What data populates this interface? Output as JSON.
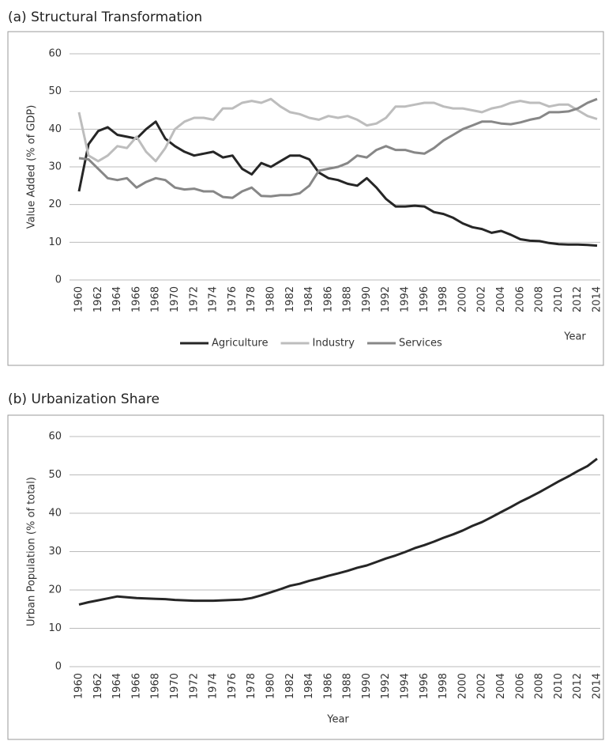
{
  "chart_data": [
    {
      "type": "line",
      "title": "(a) Structural Transformation",
      "ylabel": "Value Added (% of GDP)",
      "xlabel": "Year",
      "x": [
        1960,
        1961,
        1962,
        1963,
        1964,
        1965,
        1966,
        1967,
        1968,
        1969,
        1970,
        1971,
        1972,
        1973,
        1974,
        1975,
        1976,
        1977,
        1978,
        1979,
        1980,
        1981,
        1982,
        1983,
        1984,
        1985,
        1986,
        1987,
        1988,
        1989,
        1990,
        1991,
        1992,
        1993,
        1994,
        1995,
        1996,
        1997,
        1998,
        1999,
        2000,
        2001,
        2002,
        2003,
        2004,
        2005,
        2006,
        2007,
        2008,
        2009,
        2010,
        2011,
        2012,
        2013,
        2014
      ],
      "xlim": [
        1960,
        2014
      ],
      "xticks": [
        1960,
        1962,
        1964,
        1966,
        1968,
        1970,
        1972,
        1974,
        1976,
        1978,
        1980,
        1982,
        1984,
        1986,
        1988,
        1990,
        1992,
        1994,
        1996,
        1998,
        2000,
        2002,
        2004,
        2006,
        2008,
        2010,
        2012,
        2014
      ],
      "ylim": [
        0,
        60
      ],
      "yticks": [
        0,
        10,
        20,
        30,
        40,
        50,
        60
      ],
      "grid": true,
      "legend": "bottom",
      "series": [
        {
          "name": "Agriculture",
          "color": "#262626",
          "values": [
            23.5,
            36,
            39.5,
            40.5,
            38.5,
            38,
            37.5,
            40,
            42,
            37.5,
            35.5,
            34,
            33,
            33.5,
            34,
            32.5,
            33,
            29.5,
            28,
            31,
            30,
            31.5,
            33,
            33,
            32,
            28.5,
            27,
            26.5,
            25.5,
            25,
            27,
            24.5,
            21.5,
            19.5,
            19.5,
            19.7,
            19.5,
            18,
            17.5,
            16.5,
            15,
            14,
            13.5,
            12.5,
            13,
            12,
            10.8,
            10.4,
            10.3,
            9.8,
            9.5,
            9.4,
            9.4,
            9.3,
            9.1
          ]
        },
        {
          "name": "Industry",
          "color": "#bdbdbd",
          "values": [
            44.5,
            33,
            31.5,
            33,
            35.5,
            35,
            38,
            34,
            31.5,
            35,
            40,
            42,
            43,
            43,
            42.5,
            45.5,
            45.5,
            47,
            47.5,
            47,
            48,
            46,
            44.5,
            44,
            43,
            42.5,
            43.5,
            43,
            43.5,
            42.5,
            41,
            41.5,
            43,
            46,
            46,
            46.5,
            47,
            47,
            46,
            45.5,
            45.5,
            45,
            44.5,
            45.5,
            46,
            47,
            47.5,
            47,
            47,
            46,
            46.5,
            46.5,
            45,
            43.5,
            42.7
          ]
        },
        {
          "name": "Services",
          "color": "#878787",
          "values": [
            32.3,
            32,
            29.5,
            27,
            26.5,
            27,
            24.5,
            26,
            27,
            26.5,
            24.5,
            24,
            24.2,
            23.5,
            23.5,
            22,
            21.8,
            23.5,
            24.5,
            22.3,
            22.2,
            22.5,
            22.5,
            23,
            25,
            29,
            29.5,
            30,
            31,
            33,
            32.5,
            34.5,
            35.5,
            34.5,
            34.5,
            33.8,
            33.5,
            35,
            37,
            38.5,
            40,
            41,
            42,
            42,
            41.5,
            41.3,
            41.8,
            42.5,
            43,
            44.5,
            44.5,
            44.7,
            45.5,
            47,
            48
          ]
        }
      ]
    },
    {
      "type": "line",
      "title": "(b) Urbanization Share",
      "ylabel": "Urban Population (% of total)",
      "xlabel": "Year",
      "x": [
        1960,
        1961,
        1962,
        1963,
        1964,
        1965,
        1966,
        1967,
        1968,
        1969,
        1970,
        1971,
        1972,
        1973,
        1974,
        1975,
        1976,
        1977,
        1978,
        1979,
        1980,
        1981,
        1982,
        1983,
        1984,
        1985,
        1986,
        1987,
        1988,
        1989,
        1990,
        1991,
        1992,
        1993,
        1994,
        1995,
        1996,
        1997,
        1998,
        1999,
        2000,
        2001,
        2002,
        2003,
        2004,
        2005,
        2006,
        2007,
        2008,
        2009,
        2010,
        2011,
        2012,
        2013,
        2014
      ],
      "xlim": [
        1960,
        2014
      ],
      "xticks": [
        1960,
        1962,
        1964,
        1966,
        1968,
        1970,
        1972,
        1974,
        1976,
        1978,
        1980,
        1982,
        1984,
        1986,
        1988,
        1990,
        1992,
        1994,
        1996,
        1998,
        2000,
        2002,
        2004,
        2006,
        2008,
        2010,
        2012,
        2014
      ],
      "ylim": [
        0,
        60
      ],
      "yticks": [
        0,
        10,
        20,
        30,
        40,
        50,
        60
      ],
      "grid": true,
      "series": [
        {
          "color": "#262626",
          "values": [
            16.2,
            16.8,
            17.3,
            17.8,
            18.3,
            18.1,
            17.9,
            17.8,
            17.7,
            17.6,
            17.4,
            17.3,
            17.2,
            17.2,
            17.2,
            17.3,
            17.4,
            17.5,
            17.9,
            18.6,
            19.4,
            20.2,
            21.1,
            21.6,
            22.4,
            23,
            23.7,
            24.3,
            25,
            25.8,
            26.4,
            27.3,
            28.2,
            29,
            29.9,
            30.9,
            31.7,
            32.6,
            33.6,
            34.5,
            35.5,
            36.7,
            37.7,
            39,
            40.3,
            41.6,
            43,
            44.2,
            45.5,
            46.9,
            48.3,
            49.6,
            51,
            52.3,
            54.2
          ]
        }
      ]
    }
  ]
}
